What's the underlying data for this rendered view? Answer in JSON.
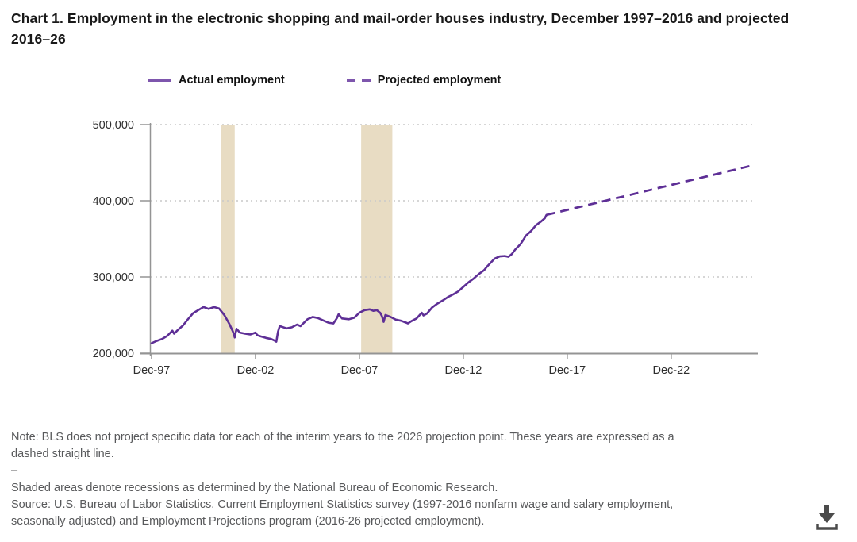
{
  "title": "Chart 1. Employment in the electronic shopping and mail-order houses industry, December 1997–2016 and projected 2016–26",
  "legend": {
    "actual": {
      "label": "Actual employment",
      "style": "solid"
    },
    "projected": {
      "label": "Projected employment",
      "style": "dashed"
    }
  },
  "colors": {
    "line_actual": "#5e2f96",
    "line_projected": "#5e2f96",
    "legend_swatch": "#7e56ad",
    "recession_shade": "#e8dcc3",
    "gridline": "#c9c9c9",
    "axis": "#949494",
    "tick_label": "#2e2e2e",
    "note_text": "#58595b",
    "title_text": "#191919",
    "download_icon": "#4b4b4b"
  },
  "chart_data": {
    "type": "line",
    "title": "Employment in the electronic shopping and mail-order houses industry",
    "xlabel": "",
    "ylabel": "",
    "x_unit": "months since Dec-1997",
    "xlim": [
      0,
      350
    ],
    "ylim": [
      200000,
      500000
    ],
    "grid": "dotted horizontal gridlines at 300,000 / 400,000 / 500,000",
    "legend_position": "top",
    "x_ticks": [
      {
        "m": 0,
        "label": "Dec-97"
      },
      {
        "m": 60,
        "label": "Dec-02"
      },
      {
        "m": 120,
        "label": "Dec-07"
      },
      {
        "m": 180,
        "label": "Dec-12"
      },
      {
        "m": 240,
        "label": "Dec-17"
      },
      {
        "m": 300,
        "label": "Dec-22"
      }
    ],
    "y_ticks": [
      {
        "v": 200000,
        "label": "200,000"
      },
      {
        "v": 300000,
        "label": "300,000"
      },
      {
        "v": 400000,
        "label": "400,000"
      },
      {
        "v": 500000,
        "label": "500,000"
      }
    ],
    "recessions": [
      {
        "start_month": 40,
        "end_month": 48,
        "note": "2001 recession"
      },
      {
        "start_month": 121,
        "end_month": 139,
        "note": "2007-09 recession"
      }
    ],
    "series": [
      {
        "name": "Actual employment",
        "style": "solid",
        "points": [
          [
            0,
            213000
          ],
          [
            3,
            216000
          ],
          [
            6,
            218500
          ],
          [
            9,
            222500
          ],
          [
            12,
            229500
          ],
          [
            13,
            225500
          ],
          [
            15,
            230000
          ],
          [
            18,
            236000
          ],
          [
            21,
            244500
          ],
          [
            24,
            252500
          ],
          [
            27,
            256500
          ],
          [
            30,
            260500
          ],
          [
            33,
            258000
          ],
          [
            36,
            260500
          ],
          [
            39,
            258500
          ],
          [
            42,
            250000
          ],
          [
            45,
            238000
          ],
          [
            47,
            228000
          ],
          [
            48,
            220500
          ],
          [
            49,
            232000
          ],
          [
            51,
            227000
          ],
          [
            54,
            225500
          ],
          [
            57,
            224500
          ],
          [
            60,
            227000
          ],
          [
            61,
            223500
          ],
          [
            63,
            222000
          ],
          [
            66,
            220000
          ],
          [
            69,
            218500
          ],
          [
            71,
            216500
          ],
          [
            72,
            215000
          ],
          [
            73,
            228000
          ],
          [
            74,
            235500
          ],
          [
            78,
            232500
          ],
          [
            81,
            234000
          ],
          [
            84,
            237500
          ],
          [
            86,
            235500
          ],
          [
            90,
            244500
          ],
          [
            93,
            247500
          ],
          [
            96,
            246000
          ],
          [
            99,
            243000
          ],
          [
            102,
            240000
          ],
          [
            105,
            239000
          ],
          [
            107,
            246000
          ],
          [
            108,
            251000
          ],
          [
            110,
            245500
          ],
          [
            114,
            244500
          ],
          [
            117,
            246500
          ],
          [
            120,
            253000
          ],
          [
            123,
            256500
          ],
          [
            126,
            257500
          ],
          [
            128,
            255500
          ],
          [
            130,
            256500
          ],
          [
            132,
            253000
          ],
          [
            133,
            248500
          ],
          [
            134,
            241000
          ],
          [
            135,
            250000
          ],
          [
            138,
            247500
          ],
          [
            141,
            244000
          ],
          [
            144,
            242500
          ],
          [
            147,
            240000
          ],
          [
            148,
            239000
          ],
          [
            150,
            242000
          ],
          [
            153,
            245500
          ],
          [
            156,
            253000
          ],
          [
            157,
            249500
          ],
          [
            159,
            252000
          ],
          [
            162,
            260000
          ],
          [
            165,
            265000
          ],
          [
            168,
            269000
          ],
          [
            171,
            273500
          ],
          [
            174,
            277000
          ],
          [
            177,
            281000
          ],
          [
            180,
            287000
          ],
          [
            183,
            293000
          ],
          [
            186,
            298000
          ],
          [
            189,
            304000
          ],
          [
            192,
            309000
          ],
          [
            194,
            314500
          ],
          [
            198,
            324000
          ],
          [
            201,
            327000
          ],
          [
            204,
            327500
          ],
          [
            206,
            326500
          ],
          [
            208,
            330000
          ],
          [
            210,
            336000
          ],
          [
            213,
            343000
          ],
          [
            215,
            350000
          ],
          [
            216,
            354000
          ],
          [
            219,
            360000
          ],
          [
            222,
            368000
          ],
          [
            225,
            373000
          ],
          [
            227,
            377000
          ],
          [
            228,
            381500
          ]
        ]
      },
      {
        "name": "Projected employment",
        "style": "dashed",
        "points": [
          [
            228,
            381500
          ],
          [
            348,
            447000
          ]
        ]
      }
    ]
  },
  "notes": {
    "note": "Note: BLS does not project specific data for each of the interim years to the 2026 projection point. These years are expressed as a dashed straight line.",
    "separator": "–",
    "shaded": "Shaded areas denote recessions as determined by the National Bureau of Economic Research.",
    "source": "Source: U.S. Bureau of Labor Statistics, Current Employment Statistics survey (1997-2016 nonfarm wage and salary employment, seasonally adjusted) and Employment Projections program (2016-26 projected employment)."
  },
  "download": {
    "icon": "download-arrow-into-tray"
  }
}
